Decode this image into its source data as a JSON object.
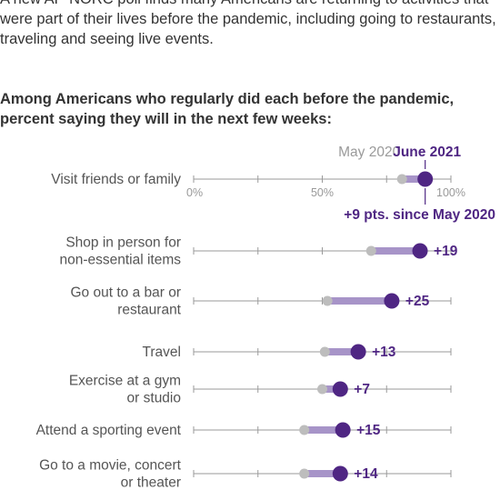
{
  "intro": "A new AP-NORC poll finds many Americans are returning to activities that were part of their lives before the pandemic, including going to restaurants, traveling and seeing live events.",
  "colors": {
    "may_2020": "#bdbdbd",
    "june_2021": "#4f2683",
    "bar_fill": "#a794c8",
    "axis": "#9a9a9a"
  },
  "chart_data": {
    "type": "dot-range",
    "title": "Among Americans who regularly did each before the pandemic, percent saying they will in the next few weeks:",
    "legend": [
      "May 2020",
      "June 2021"
    ],
    "tick_labels": [
      "0%",
      "50%",
      "100%"
    ],
    "xlim": [
      0,
      100
    ],
    "series": [
      {
        "name": "May 2020",
        "values": [
          81,
          69,
          52,
          51,
          50,
          43,
          43
        ]
      },
      {
        "name": "June 2021",
        "values": [
          90,
          88,
          77,
          64,
          57,
          58,
          57
        ]
      }
    ],
    "categories": [
      {
        "lines": [
          "Visit friends or family"
        ],
        "diff": "+9 pts. since May 2020"
      },
      {
        "lines": [
          "Shop in person for",
          "non-essential items"
        ],
        "diff": "+19"
      },
      {
        "lines": [
          "Go out to a bar or",
          "restaurant"
        ],
        "diff": "+25"
      },
      {
        "lines": [
          "Travel"
        ],
        "diff": "+13"
      },
      {
        "lines": [
          "Exercise at a gym",
          "or studio"
        ],
        "diff": "+7"
      },
      {
        "lines": [
          "Attend a sporting event"
        ],
        "diff": "+15"
      },
      {
        "lines": [
          "Go to a movie, concert",
          "or theater"
        ],
        "diff": "+14"
      }
    ]
  }
}
